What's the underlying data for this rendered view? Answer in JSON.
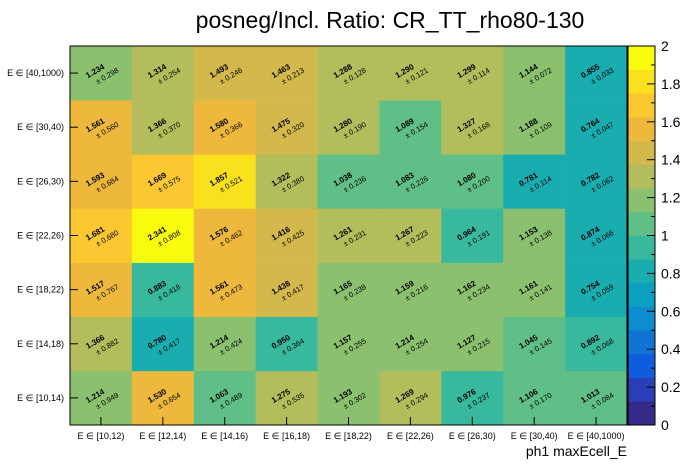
{
  "chart_data": {
    "type": "heatmap",
    "title": "posneg/Incl. Ratio: CR_TT_rho80-130",
    "xlabel": "ph1 maxEcell_E",
    "ylabel": "",
    "x_categories": [
      "E ∈ [10,12)",
      "E ∈ [12,14)",
      "E ∈ [14,16)",
      "E ∈ [16,18)",
      "E ∈ [18,22)",
      "E ∈ [22,26)",
      "E ∈ [26,30)",
      "E ∈ [30,40)",
      "E ∈ [40,1000)"
    ],
    "y_categories": [
      "E ∈ [10,14)",
      "E ∈ [14,18)",
      "E ∈ [18,22)",
      "E ∈ [22,26)",
      "E ∈ [26,30)",
      "E ∈ [30,40)",
      "E ∈ [40,1000)"
    ],
    "values": [
      [
        1.214,
        1.53,
        1.063,
        1.275,
        1.193,
        1.269,
        0.976,
        1.106,
        1.013
      ],
      [
        1.366,
        0.78,
        1.214,
        0.95,
        1.157,
        1.214,
        1.127,
        1.045,
        0.892
      ],
      [
        1.517,
        0.883,
        1.561,
        1.438,
        1.165,
        1.159,
        1.162,
        1.161,
        0.754
      ],
      [
        1.681,
        2.341,
        1.576,
        1.416,
        1.261,
        1.267,
        0.964,
        1.153,
        0.874
      ],
      [
        1.593,
        1.669,
        1.857,
        1.322,
        1.038,
        1.083,
        1.08,
        0.781,
        0.782
      ],
      [
        1.561,
        1.366,
        1.58,
        1.475,
        1.28,
        1.089,
        1.327,
        1.188,
        0.764
      ],
      [
        1.234,
        1.314,
        1.493,
        1.463,
        1.288,
        1.29,
        1.299,
        1.144,
        0.855
      ]
    ],
    "value_labels": [
      [
        "1.214",
        "1.530",
        "1.063",
        "1.275",
        "1.193",
        "1.269",
        "0.976",
        "1.106",
        "1.013"
      ],
      [
        "1.366",
        "0.780",
        "1.214",
        "0.950",
        "1.157",
        "1.214",
        "1.127",
        "1.045",
        "0.892"
      ],
      [
        "1.517",
        "0.883",
        "1.561",
        "1.438",
        "1.165",
        "1.159",
        "1.162",
        "1.161",
        "0.754"
      ],
      [
        "1.681",
        "2.341",
        "1.576",
        "1.416",
        "1.261",
        "1.267",
        "0.964",
        "1.153",
        "0.874"
      ],
      [
        "1.593",
        "1.669",
        "1.857",
        "1.322",
        "1.038",
        "1.083",
        "1.080",
        "0.781",
        "0.782"
      ],
      [
        "1.561",
        "1.366",
        "1.580",
        "1.475",
        "1.280",
        "1.089",
        "1.327",
        "1.188",
        "0.764"
      ],
      [
        "1.234",
        "1.314",
        "1.493",
        "1.463",
        "1.288",
        "1.290",
        "1.299",
        "1.144",
        "0.855"
      ]
    ],
    "error_labels": [
      [
        "± 0.949",
        "± 0.654",
        "± 0.489",
        "± 0.535",
        "± 0.302",
        "± 0.294",
        "± 0.237",
        "± 0.170",
        "± 0.084"
      ],
      [
        "± 0.882",
        "± 0.417",
        "± 0.424",
        "± 0.364",
        "± 0.255",
        "± 0.254",
        "± 0.215",
        "± 0.145",
        "± 0.068"
      ],
      [
        "± 0.767",
        "± 0.418",
        "± 0.473",
        "± 0.417",
        "± 0.238",
        "± 0.216",
        "± 0.234",
        "± 0.141",
        "± 0.059"
      ],
      [
        "± 0.680",
        "± 0.808",
        "± 0.462",
        "± 0.425",
        "± 0.231",
        "± 0.223",
        "± 0.191",
        "± 0.138",
        "± 0.066"
      ],
      [
        "± 0.684",
        "± 0.575",
        "± 0.521",
        "± 0.380",
        "± 0.236",
        "± 0.226",
        "± 0.200",
        "± 0.114",
        "± 0.062"
      ],
      [
        "± 0.560",
        "± 0.370",
        "± 0.366",
        "± 0.320",
        "± 0.190",
        "± 0.154",
        "± 0.168",
        "± 0.109",
        "± 0.047"
      ],
      [
        "± 0.298",
        "± 0.254",
        "± 0.246",
        "± 0.213",
        "± 0.128",
        "± 0.121",
        "± 0.114",
        "± 0.072",
        "± 0.033"
      ]
    ],
    "zlim": [
      0,
      2
    ],
    "z_ticks": [
      "0",
      "0.2",
      "0.4",
      "0.6",
      "0.8",
      "1",
      "1.2",
      "1.4",
      "1.6",
      "1.8",
      "2"
    ],
    "palette": [
      "#352a87",
      "#2a3fb7",
      "#0f5cdd",
      "#1173d4",
      "#0d8dd0",
      "#0ba0c0",
      "#1aadb0",
      "#38b89c",
      "#60bf86",
      "#8bc06e",
      "#b3bd5b",
      "#d3b84c",
      "#edb83c",
      "#fcc831",
      "#f9e11e",
      "#f9fb0e"
    ],
    "grid": false,
    "legend": "colorbar-right"
  }
}
